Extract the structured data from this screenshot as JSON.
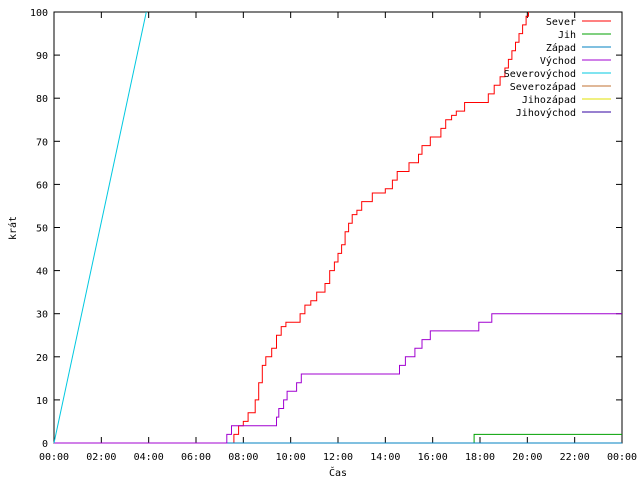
{
  "chart_data": {
    "type": "line",
    "xlabel": "Čas",
    "ylabel": "krát",
    "x_unit": "hours",
    "xlim": [
      0,
      24
    ],
    "ylim": [
      0,
      100
    ],
    "x_ticks": [
      {
        "value": 0,
        "label": "00:00"
      },
      {
        "value": 2,
        "label": "02:00"
      },
      {
        "value": 4,
        "label": "04:00"
      },
      {
        "value": 6,
        "label": "06:00"
      },
      {
        "value": 8,
        "label": "08:00"
      },
      {
        "value": 10,
        "label": "10:00"
      },
      {
        "value": 12,
        "label": "12:00"
      },
      {
        "value": 14,
        "label": "14:00"
      },
      {
        "value": 16,
        "label": "16:00"
      },
      {
        "value": 18,
        "label": "18:00"
      },
      {
        "value": 20,
        "label": "20:00"
      },
      {
        "value": 22,
        "label": "22:00"
      },
      {
        "value": 24,
        "label": "00:00"
      }
    ],
    "y_ticks": [
      0,
      10,
      20,
      30,
      40,
      50,
      60,
      70,
      80,
      90,
      100
    ],
    "grid": false,
    "legend_position": "top-right",
    "series": [
      {
        "name": "Sever",
        "color": "#ff0000",
        "step": true,
        "points": [
          [
            7.5,
            0
          ],
          [
            7.6,
            2
          ],
          [
            7.8,
            4
          ],
          [
            8.0,
            5
          ],
          [
            8.2,
            7
          ],
          [
            8.5,
            10
          ],
          [
            8.65,
            14
          ],
          [
            8.8,
            18
          ],
          [
            8.95,
            20
          ],
          [
            9.2,
            22
          ],
          [
            9.4,
            25
          ],
          [
            9.6,
            27
          ],
          [
            9.8,
            28
          ],
          [
            10.4,
            30
          ],
          [
            10.6,
            32
          ],
          [
            10.85,
            33
          ],
          [
            11.1,
            35
          ],
          [
            11.45,
            37
          ],
          [
            11.65,
            40
          ],
          [
            11.85,
            42
          ],
          [
            12.0,
            44
          ],
          [
            12.15,
            46
          ],
          [
            12.3,
            49
          ],
          [
            12.45,
            51
          ],
          [
            12.6,
            53
          ],
          [
            12.8,
            54
          ],
          [
            13.0,
            56
          ],
          [
            13.45,
            58
          ],
          [
            14.0,
            59
          ],
          [
            14.3,
            61
          ],
          [
            14.5,
            63
          ],
          [
            15.0,
            65
          ],
          [
            15.4,
            67
          ],
          [
            15.55,
            69
          ],
          [
            15.9,
            71
          ],
          [
            16.35,
            73
          ],
          [
            16.55,
            75
          ],
          [
            16.8,
            76
          ],
          [
            17.0,
            77
          ],
          [
            17.35,
            79
          ],
          [
            18.35,
            81
          ],
          [
            18.6,
            83
          ],
          [
            18.85,
            85
          ],
          [
            19.05,
            87
          ],
          [
            19.2,
            89
          ],
          [
            19.35,
            91
          ],
          [
            19.5,
            93
          ],
          [
            19.65,
            95
          ],
          [
            19.8,
            97
          ],
          [
            19.95,
            99
          ],
          [
            20.05,
            100
          ]
        ]
      },
      {
        "name": "Jih",
        "color": "#00a000",
        "step": true,
        "points": [
          [
            0,
            0
          ],
          [
            17.7,
            0
          ],
          [
            17.75,
            2
          ],
          [
            24,
            2
          ]
        ]
      },
      {
        "name": "Západ",
        "color": "#0080c0",
        "step": true,
        "points": [
          [
            0,
            0
          ],
          [
            24,
            0
          ]
        ]
      },
      {
        "name": "Východ",
        "color": "#a000d0",
        "step": true,
        "points": [
          [
            0,
            0
          ],
          [
            7.15,
            0
          ],
          [
            7.3,
            2
          ],
          [
            7.5,
            4
          ],
          [
            9.4,
            6
          ],
          [
            9.5,
            8
          ],
          [
            9.7,
            10
          ],
          [
            9.85,
            12
          ],
          [
            10.25,
            14
          ],
          [
            10.45,
            16
          ],
          [
            14.6,
            18
          ],
          [
            14.85,
            20
          ],
          [
            15.25,
            22
          ],
          [
            15.55,
            24
          ],
          [
            15.9,
            26
          ],
          [
            17.95,
            28
          ],
          [
            18.5,
            30
          ],
          [
            24,
            30
          ]
        ]
      },
      {
        "name": "Severovýchod",
        "color": "#00c8e0",
        "step": false,
        "points": [
          [
            0,
            0
          ],
          [
            3.9,
            100
          ]
        ]
      },
      {
        "name": "Severozápad",
        "color": "#c07030",
        "step": true,
        "points": []
      },
      {
        "name": "Jihozápad",
        "color": "#e0e000",
        "step": true,
        "points": []
      },
      {
        "name": "Jihovýchod",
        "color": "#3000a0",
        "step": true,
        "points": []
      }
    ]
  }
}
